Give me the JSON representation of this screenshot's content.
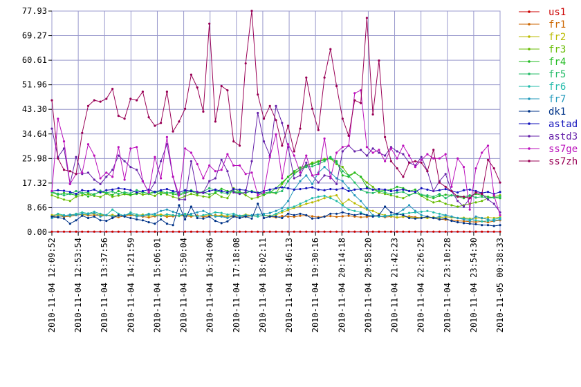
{
  "chart_data": {
    "type": "line",
    "ylim": [
      0,
      77.93
    ],
    "y_ticks": [
      "0.00",
      "8.66",
      "17.32",
      "25.98",
      "34.64",
      "43.30",
      "51.96",
      "60.61",
      "69.27",
      "77.93"
    ],
    "x_tick_labels": [
      "2010-11-04 12:09:52",
      "2010-11-04 12:53:54",
      "2010-11-04 13:37:56",
      "2010-11-04 14:21:59",
      "2010-11-04 15:06:01",
      "2010-11-04 15:50:04",
      "2010-11-04 16:34:06",
      "2010-11-04 17:18:08",
      "2010-11-04 18:02:11",
      "2010-11-04 18:46:13",
      "2010-11-04 19:30:16",
      "2010-11-04 20:14:18",
      "2010-11-04 20:58:20",
      "2010-11-04 21:42:23",
      "2010-11-04 22:26:25",
      "2010-11-04 23:10:28",
      "2010-11-04 23:54:30",
      "2010-11-05 00:38:33"
    ],
    "grid": true,
    "legend_position": "right",
    "n_points": 75,
    "series": [
      {
        "name": "us1",
        "color": "#cc0000",
        "values": [
          0.2,
          0.2,
          0.2,
          0.2,
          0.2,
          0.2,
          0.2,
          0.2,
          0.2,
          0.2,
          0.2,
          0.2,
          0.2,
          0.2,
          0.2,
          0.2,
          0.2,
          0.2,
          0.2,
          0.2,
          0.2,
          0.2,
          0.2,
          0.2,
          0.2,
          0.2,
          0.2,
          0.2,
          0.2,
          0.2,
          0.2,
          0.2,
          0.2,
          0.2,
          0.2,
          0.2,
          0.2,
          0.2,
          0.2,
          0.2,
          0.2,
          0.2,
          0.2,
          0.2,
          0.2,
          0.2,
          0.2,
          0.2,
          0.2,
          0.2,
          0.2,
          0.2,
          0.2,
          0.2,
          0.2,
          0.2,
          0.2,
          0.2,
          0.2,
          0.2,
          0.2,
          0.2,
          0.2,
          0.2,
          0.2,
          0.2,
          0.2,
          0.2,
          0.2,
          0.2,
          0.2,
          0.2,
          0.2,
          0.2,
          0.2
        ]
      },
      {
        "name": "fr1",
        "color": "#cc6600",
        "values": [
          5.5,
          5.8,
          5.4,
          5.6,
          6.0,
          6.3,
          5.9,
          6.1,
          5.8,
          6.0,
          5.5,
          5.3,
          5.7,
          6.0,
          5.8,
          5.5,
          5.2,
          5.6,
          5.9,
          5.4,
          5.6,
          5.8,
          5.7,
          5.5,
          5.9,
          5.4,
          5.6,
          6.0,
          5.7,
          5.3,
          5.5,
          5.6,
          5.4,
          5.8,
          5.6,
          5.9,
          5.5,
          5.2,
          5.7,
          5.5,
          5.4,
          5.8,
          5.9,
          5.6,
          5.3,
          5.5,
          5.7,
          5.4,
          5.6,
          5.8,
          5.5,
          5.3,
          5.4,
          5.7,
          5.6,
          5.3,
          5.5,
          5.2,
          5.4,
          5.6,
          5.3,
          5.1,
          5.3,
          5.0,
          4.6,
          4.4,
          4.2,
          4.0,
          3.9,
          3.7,
          3.6,
          3.8,
          3.5,
          3.9,
          4.2
        ]
      },
      {
        "name": "fr2",
        "color": "#bbbb00",
        "values": [
          6.0,
          6.2,
          5.8,
          6.1,
          6.4,
          6.0,
          6.3,
          6.5,
          6.2,
          5.9,
          6.1,
          5.8,
          6.0,
          6.3,
          5.9,
          6.2,
          5.7,
          6.0,
          6.2,
          5.8,
          6.0,
          5.7,
          6.1,
          5.9,
          5.6,
          5.9,
          6.1,
          5.8,
          6.0,
          5.7,
          6.0,
          5.8,
          6.2,
          5.9,
          5.6,
          6.0,
          5.8,
          6.1,
          7.0,
          7.8,
          8.6,
          9.2,
          10.0,
          10.5,
          11.2,
          12.0,
          12.6,
          13.0,
          10.0,
          11.5,
          10.2,
          9.0,
          8.0,
          7.5,
          6.5,
          6.0,
          5.6,
          5.2,
          5.5,
          5.3,
          5.0,
          5.2,
          5.0,
          5.3,
          5.1,
          5.4,
          5.2,
          5.0,
          5.1,
          4.8,
          5.0,
          4.9,
          5.2,
          5.0,
          5.3
        ]
      },
      {
        "name": "fr3",
        "color": "#66bb00",
        "values": [
          13.0,
          12.2,
          11.5,
          11.0,
          12.5,
          13.0,
          13.5,
          12.8,
          12.4,
          13.6,
          12.5,
          12.9,
          13.4,
          13.0,
          13.8,
          13.2,
          13.5,
          12.8,
          14.2,
          13.3,
          12.5,
          11.8,
          12.7,
          13.5,
          13.0,
          12.6,
          12.3,
          13.8,
          12.5,
          12.0,
          15.5,
          14.3,
          13.0,
          11.8,
          12.3,
          13.1,
          14.0,
          13.7,
          17.0,
          19.5,
          21.0,
          22.0,
          23.5,
          24.5,
          25.0,
          25.8,
          26.0,
          24.0,
          23.0,
          20.0,
          21.0,
          19.5,
          17.5,
          16.0,
          14.0,
          13.5,
          13.0,
          12.5,
          12.0,
          13.0,
          14.0,
          12.8,
          11.5,
          10.5,
          11.0,
          10.0,
          9.5,
          9.0,
          9.5,
          10.0,
          10.5,
          11.0,
          12.0,
          12.5,
          13.0
        ]
      },
      {
        "name": "fr4",
        "color": "#22bb22",
        "values": [
          14.0,
          13.2,
          13.8,
          13.5,
          13.0,
          13.8,
          12.6,
          13.4,
          14.2,
          13.8,
          13.1,
          14.5,
          13.6,
          13.2,
          13.5,
          14.0,
          13.7,
          14.3,
          13.4,
          14.0,
          13.5,
          13.0,
          13.8,
          14.4,
          13.6,
          14.1,
          13.3,
          13.9,
          15.3,
          14.5,
          14.2,
          13.8,
          14.0,
          14.5,
          13.8,
          13.2,
          14.0,
          15.5,
          17.5,
          19.5,
          21.5,
          22.8,
          23.5,
          24.0,
          24.8,
          25.5,
          26.0,
          25.0,
          20.0,
          19.5,
          21.0,
          19.5,
          16.0,
          15.0,
          14.5,
          14.8,
          15.0,
          16.0,
          15.5,
          14.5,
          15.0,
          13.0,
          12.5,
          12.0,
          12.8,
          13.2,
          13.0,
          12.5,
          12.0,
          12.8,
          13.5,
          13.0,
          12.5,
          12.2,
          12.0
        ]
      },
      {
        "name": "fr5",
        "color": "#22bb66",
        "values": [
          14.2,
          13.6,
          13.0,
          13.5,
          14.5,
          13.8,
          14.0,
          13.2,
          14.6,
          13.9,
          14.3,
          13.5,
          14.1,
          13.7,
          14.8,
          14.2,
          13.6,
          14.0,
          14.4,
          13.8,
          14.1,
          13.5,
          14.2,
          14.8,
          13.9,
          14.3,
          15.5,
          14.7,
          14.0,
          13.6,
          14.5,
          14.0,
          13.8,
          14.5,
          14.0,
          13.8,
          14.2,
          13.9,
          14.5,
          18.0,
          20.5,
          22.0,
          23.0,
          23.2,
          24.0,
          25.0,
          26.5,
          24.5,
          21.5,
          20.0,
          17.5,
          15.0,
          14.0,
          13.8,
          14.5,
          14.0,
          13.5,
          14.0,
          14.2,
          13.0,
          13.8,
          13.2,
          13.0,
          12.5,
          13.5,
          12.0,
          13.0,
          12.8,
          12.5,
          13.0,
          12.2,
          12.5,
          12.0,
          12.2,
          12.5
        ]
      },
      {
        "name": "fr6",
        "color": "#22bbaa",
        "values": [
          5.5,
          6.5,
          6.0,
          5.8,
          6.5,
          7.0,
          6.6,
          7.2,
          6.5,
          6.0,
          8.0,
          6.5,
          5.8,
          7.0,
          6.2,
          5.9,
          6.5,
          6.0,
          5.7,
          6.3,
          6.0,
          5.8,
          6.5,
          6.0,
          5.5,
          6.0,
          6.5,
          7.0,
          6.8,
          6.2,
          6.5,
          5.8,
          6.0,
          5.8,
          5.5,
          6.0,
          5.6,
          6.5,
          7.5,
          8.5,
          9.0,
          10.0,
          11.0,
          12.0,
          12.5,
          12.8,
          12.0,
          11.0,
          9.5,
          8.0,
          7.5,
          7.0,
          6.0,
          5.8,
          5.5,
          5.8,
          6.0,
          6.2,
          6.5,
          6.8,
          7.0,
          7.2,
          7.5,
          7.0,
          6.5,
          6.0,
          5.5,
          5.0,
          4.8,
          4.5,
          4.2,
          3.8,
          4.0,
          4.5,
          5.0
        ]
      },
      {
        "name": "fr7",
        "color": "#2299bb",
        "values": [
          5.0,
          5.5,
          5.8,
          6.2,
          6.0,
          6.5,
          6.3,
          6.8,
          5.5,
          6.0,
          5.6,
          5.8,
          6.0,
          6.5,
          5.5,
          5.8,
          6.2,
          6.5,
          7.5,
          8.0,
          7.2,
          6.5,
          5.8,
          6.5,
          7.0,
          7.5,
          6.5,
          5.5,
          5.5,
          5.0,
          6.0,
          5.5,
          5.8,
          6.0,
          6.2,
          6.5,
          6.8,
          7.5,
          8.5,
          11.0,
          15.0,
          18.0,
          20.0,
          17.0,
          21.0,
          23.0,
          21.0,
          19.0,
          18.0,
          15.5,
          13.0,
          11.0,
          8.5,
          6.0,
          5.5,
          5.5,
          6.0,
          6.5,
          8.0,
          9.5,
          7.5,
          6.0,
          5.5,
          5.0,
          5.5,
          6.0,
          5.5,
          5.0,
          4.5,
          4.0,
          5.5,
          5.0,
          4.5,
          4.0,
          4.5
        ]
      },
      {
        "name": "dk1",
        "color": "#003388",
        "values": [
          5.5,
          5.2,
          4.8,
          3.0,
          4.2,
          5.8,
          5.0,
          5.5,
          4.2,
          4.0,
          5.0,
          6.0,
          5.5,
          5.0,
          4.5,
          4.2,
          3.5,
          3.0,
          4.5,
          3.0,
          2.5,
          9.5,
          4.5,
          9.0,
          5.0,
          4.8,
          5.5,
          4.0,
          3.2,
          3.8,
          5.5,
          5.0,
          5.5,
          4.8,
          10.0,
          5.0,
          5.5,
          5.5,
          5.0,
          6.5,
          6.0,
          6.5,
          6.0,
          4.8,
          5.0,
          5.5,
          6.5,
          6.5,
          7.0,
          6.5,
          6.0,
          6.5,
          6.0,
          5.5,
          6.0,
          9.0,
          7.0,
          6.5,
          6.0,
          5.0,
          4.8,
          5.0,
          5.5,
          5.0,
          4.5,
          4.8,
          4.0,
          3.5,
          3.2,
          3.0,
          2.8,
          2.5,
          2.5,
          2.2,
          2.5
        ]
      },
      {
        "name": "astad",
        "color": "#1111bb",
        "values": [
          14.5,
          14.8,
          14.6,
          14.2,
          13.5,
          14.8,
          14.5,
          15.0,
          14.0,
          14.8,
          15.0,
          15.5,
          15.2,
          14.8,
          14.0,
          14.5,
          15.0,
          14.2,
          14.8,
          15.2,
          14.5,
          14.0,
          14.8,
          14.5,
          14.2,
          13.8,
          14.5,
          15.0,
          14.5,
          14.0,
          15.2,
          15.0,
          14.8,
          14.2,
          13.8,
          14.5,
          15.0,
          15.5,
          15.8,
          15.5,
          15.0,
          15.2,
          15.5,
          15.8,
          15.0,
          14.8,
          15.2,
          15.0,
          15.5,
          14.5,
          15.0,
          15.2,
          15.5,
          15.0,
          15.2,
          15.0,
          14.5,
          14.8,
          15.0,
          14.5,
          14.2,
          15.5,
          15.0,
          14.5,
          14.8,
          15.2,
          14.5,
          14.0,
          14.8,
          15.0,
          14.5,
          13.8,
          14.2,
          13.5,
          14.2
        ]
      },
      {
        "name": "astd3",
        "color": "#6622aa",
        "values": [
          36.5,
          26.5,
          29.5,
          17.0,
          26.5,
          20.5,
          21.0,
          18.5,
          17.0,
          19.5,
          22.0,
          27.0,
          25.0,
          23.0,
          22.0,
          18.0,
          14.0,
          17.5,
          25.0,
          31.0,
          19.5,
          11.5,
          11.5,
          25.0,
          14.0,
          14.0,
          18.0,
          19.0,
          25.5,
          21.5,
          14.0,
          13.5,
          14.0,
          25.0,
          42.0,
          32.0,
          27.0,
          44.5,
          38.5,
          30.0,
          19.0,
          20.0,
          24.5,
          20.0,
          17.5,
          20.0,
          19.5,
          17.0,
          28.5,
          30.5,
          28.5,
          29.0,
          27.0,
          29.5,
          28.0,
          27.0,
          30.0,
          28.5,
          27.5,
          24.5,
          23.5,
          26.5,
          21.5,
          14.5,
          18.0,
          20.5,
          14.5,
          11.0,
          9.0,
          12.0,
          14.0,
          13.5,
          11.5,
          10.0,
          7.0
        ]
      },
      {
        "name": "ss7ge",
        "color": "#bb11bb",
        "values": [
          14.5,
          40.0,
          32.0,
          17.0,
          20.5,
          21.0,
          31.0,
          27.0,
          19.0,
          21.0,
          19.5,
          30.0,
          18.5,
          29.5,
          30.0,
          18.0,
          14.0,
          26.5,
          19.0,
          33.5,
          19.5,
          13.0,
          29.5,
          28.0,
          24.0,
          19.0,
          23.5,
          21.5,
          22.0,
          27.5,
          23.5,
          23.5,
          20.5,
          21.0,
          13.0,
          14.0,
          26.5,
          34.5,
          19.0,
          31.0,
          27.0,
          21.0,
          27.0,
          20.0,
          20.5,
          33.0,
          19.0,
          28.0,
          30.0,
          30.5,
          49.0,
          50.0,
          30.0,
          28.0,
          29.0,
          25.0,
          29.5,
          26.0,
          30.5,
          27.0,
          23.0,
          25.5,
          27.5,
          26.0,
          26.0,
          27.5,
          16.0,
          26.0,
          23.0,
          8.0,
          22.5,
          28.0,
          30.5,
          13.0,
          6.0
        ]
      },
      {
        "name": "ss7zh",
        "color": "#990055",
        "values": [
          46.5,
          26.0,
          22.0,
          21.5,
          20.5,
          35.0,
          44.5,
          46.5,
          46.0,
          47.0,
          50.5,
          41.0,
          40.0,
          47.0,
          46.5,
          49.5,
          40.5,
          37.5,
          38.5,
          49.5,
          35.5,
          39.0,
          43.5,
          55.5,
          51.0,
          42.5,
          73.5,
          39.0,
          51.5,
          50.0,
          32.0,
          30.5,
          59.5,
          78.0,
          48.5,
          40.0,
          44.5,
          39.5,
          30.5,
          37.5,
          28.5,
          36.5,
          54.5,
          43.5,
          36.0,
          54.5,
          64.5,
          51.5,
          40.0,
          34.0,
          46.5,
          45.5,
          75.5,
          41.5,
          60.5,
          33.5,
          25.0,
          22.5,
          19.5,
          24.5,
          25.0,
          24.5,
          21.5,
          29.0,
          17.5,
          16.0,
          14.5,
          12.5,
          12.5,
          12.0,
          14.0,
          13.5,
          25.5,
          22.5,
          17.5
        ]
      }
    ]
  }
}
